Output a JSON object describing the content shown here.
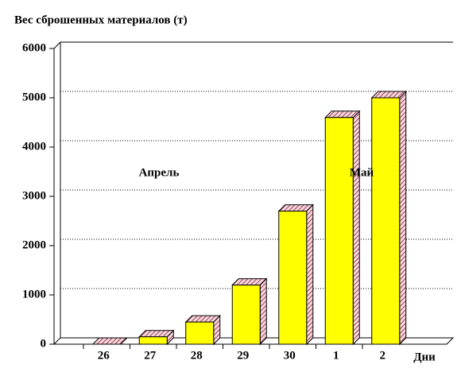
{
  "chart_data": {
    "type": "bar3d",
    "title": "Вес сброшенных материалов (т)",
    "x_label": "Дни",
    "annotations": [
      "Апрель",
      "Май"
    ],
    "categories": [
      "26",
      "27",
      "28",
      "29",
      "30",
      "1",
      "2"
    ],
    "values": [
      0,
      150,
      450,
      1200,
      2700,
      4600,
      5000
    ],
    "color": "#ffff00",
    "ylim": [
      0,
      6000
    ],
    "yticks": [
      0,
      1000,
      2000,
      3000,
      4000,
      5000,
      6000
    ],
    "grid": true
  }
}
